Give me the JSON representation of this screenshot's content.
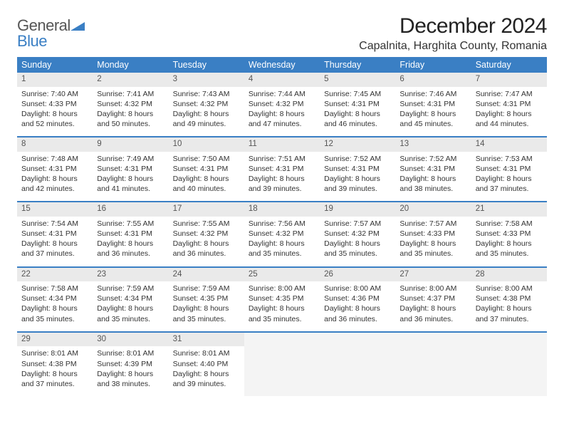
{
  "logo": {
    "line1": "General",
    "line2": "Blue",
    "accent": "#3a7fc4"
  },
  "title": "December 2024",
  "location": "Capalnita, Harghita County, Romania",
  "headers": [
    "Sunday",
    "Monday",
    "Tuesday",
    "Wednesday",
    "Thursday",
    "Friday",
    "Saturday"
  ],
  "colors": {
    "header_bg": "#3a7fc4",
    "header_fg": "#ffffff",
    "daynum_bg": "#eaeaea",
    "accent_rule": "#3a7fc4",
    "text": "#333333"
  },
  "weeks": [
    [
      {
        "n": "1",
        "sunrise": "7:40 AM",
        "sunset": "4:33 PM",
        "daylight": "8 hours and 52 minutes."
      },
      {
        "n": "2",
        "sunrise": "7:41 AM",
        "sunset": "4:32 PM",
        "daylight": "8 hours and 50 minutes."
      },
      {
        "n": "3",
        "sunrise": "7:43 AM",
        "sunset": "4:32 PM",
        "daylight": "8 hours and 49 minutes."
      },
      {
        "n": "4",
        "sunrise": "7:44 AM",
        "sunset": "4:32 PM",
        "daylight": "8 hours and 47 minutes."
      },
      {
        "n": "5",
        "sunrise": "7:45 AM",
        "sunset": "4:31 PM",
        "daylight": "8 hours and 46 minutes."
      },
      {
        "n": "6",
        "sunrise": "7:46 AM",
        "sunset": "4:31 PM",
        "daylight": "8 hours and 45 minutes."
      },
      {
        "n": "7",
        "sunrise": "7:47 AM",
        "sunset": "4:31 PM",
        "daylight": "8 hours and 44 minutes."
      }
    ],
    [
      {
        "n": "8",
        "sunrise": "7:48 AM",
        "sunset": "4:31 PM",
        "daylight": "8 hours and 42 minutes."
      },
      {
        "n": "9",
        "sunrise": "7:49 AM",
        "sunset": "4:31 PM",
        "daylight": "8 hours and 41 minutes."
      },
      {
        "n": "10",
        "sunrise": "7:50 AM",
        "sunset": "4:31 PM",
        "daylight": "8 hours and 40 minutes."
      },
      {
        "n": "11",
        "sunrise": "7:51 AM",
        "sunset": "4:31 PM",
        "daylight": "8 hours and 39 minutes."
      },
      {
        "n": "12",
        "sunrise": "7:52 AM",
        "sunset": "4:31 PM",
        "daylight": "8 hours and 39 minutes."
      },
      {
        "n": "13",
        "sunrise": "7:52 AM",
        "sunset": "4:31 PM",
        "daylight": "8 hours and 38 minutes."
      },
      {
        "n": "14",
        "sunrise": "7:53 AM",
        "sunset": "4:31 PM",
        "daylight": "8 hours and 37 minutes."
      }
    ],
    [
      {
        "n": "15",
        "sunrise": "7:54 AM",
        "sunset": "4:31 PM",
        "daylight": "8 hours and 37 minutes."
      },
      {
        "n": "16",
        "sunrise": "7:55 AM",
        "sunset": "4:31 PM",
        "daylight": "8 hours and 36 minutes."
      },
      {
        "n": "17",
        "sunrise": "7:55 AM",
        "sunset": "4:32 PM",
        "daylight": "8 hours and 36 minutes."
      },
      {
        "n": "18",
        "sunrise": "7:56 AM",
        "sunset": "4:32 PM",
        "daylight": "8 hours and 35 minutes."
      },
      {
        "n": "19",
        "sunrise": "7:57 AM",
        "sunset": "4:32 PM",
        "daylight": "8 hours and 35 minutes."
      },
      {
        "n": "20",
        "sunrise": "7:57 AM",
        "sunset": "4:33 PM",
        "daylight": "8 hours and 35 minutes."
      },
      {
        "n": "21",
        "sunrise": "7:58 AM",
        "sunset": "4:33 PM",
        "daylight": "8 hours and 35 minutes."
      }
    ],
    [
      {
        "n": "22",
        "sunrise": "7:58 AM",
        "sunset": "4:34 PM",
        "daylight": "8 hours and 35 minutes."
      },
      {
        "n": "23",
        "sunrise": "7:59 AM",
        "sunset": "4:34 PM",
        "daylight": "8 hours and 35 minutes."
      },
      {
        "n": "24",
        "sunrise": "7:59 AM",
        "sunset": "4:35 PM",
        "daylight": "8 hours and 35 minutes."
      },
      {
        "n": "25",
        "sunrise": "8:00 AM",
        "sunset": "4:35 PM",
        "daylight": "8 hours and 35 minutes."
      },
      {
        "n": "26",
        "sunrise": "8:00 AM",
        "sunset": "4:36 PM",
        "daylight": "8 hours and 36 minutes."
      },
      {
        "n": "27",
        "sunrise": "8:00 AM",
        "sunset": "4:37 PM",
        "daylight": "8 hours and 36 minutes."
      },
      {
        "n": "28",
        "sunrise": "8:00 AM",
        "sunset": "4:38 PM",
        "daylight": "8 hours and 37 minutes."
      }
    ],
    [
      {
        "n": "29",
        "sunrise": "8:01 AM",
        "sunset": "4:38 PM",
        "daylight": "8 hours and 37 minutes."
      },
      {
        "n": "30",
        "sunrise": "8:01 AM",
        "sunset": "4:39 PM",
        "daylight": "8 hours and 38 minutes."
      },
      {
        "n": "31",
        "sunrise": "8:01 AM",
        "sunset": "4:40 PM",
        "daylight": "8 hours and 39 minutes."
      },
      null,
      null,
      null,
      null
    ]
  ],
  "labels": {
    "sunrise": "Sunrise:",
    "sunset": "Sunset:",
    "daylight": "Daylight:"
  }
}
